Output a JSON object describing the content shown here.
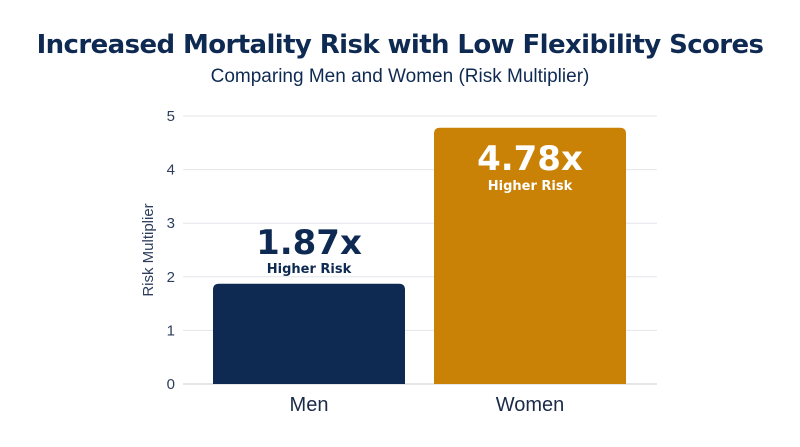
{
  "chart_data": {
    "type": "bar",
    "title": "Increased Mortality Risk with Low Flexibility Scores",
    "subtitle": "Comparing Men and Women (Risk Multiplier)",
    "xlabel": "",
    "ylabel": "Risk Multiplier",
    "categories": [
      "Men",
      "Women"
    ],
    "values": [
      1.87,
      4.78
    ],
    "data_labels": [
      "1.87x",
      "4.78x"
    ],
    "data_label_sub": "Higher Risk",
    "ylim": [
      0,
      5
    ],
    "yticks": [
      0,
      1,
      2,
      3,
      4,
      5
    ],
    "grid": true,
    "legend": "none",
    "colors": [
      "#0f2a52",
      "#c98206"
    ]
  }
}
